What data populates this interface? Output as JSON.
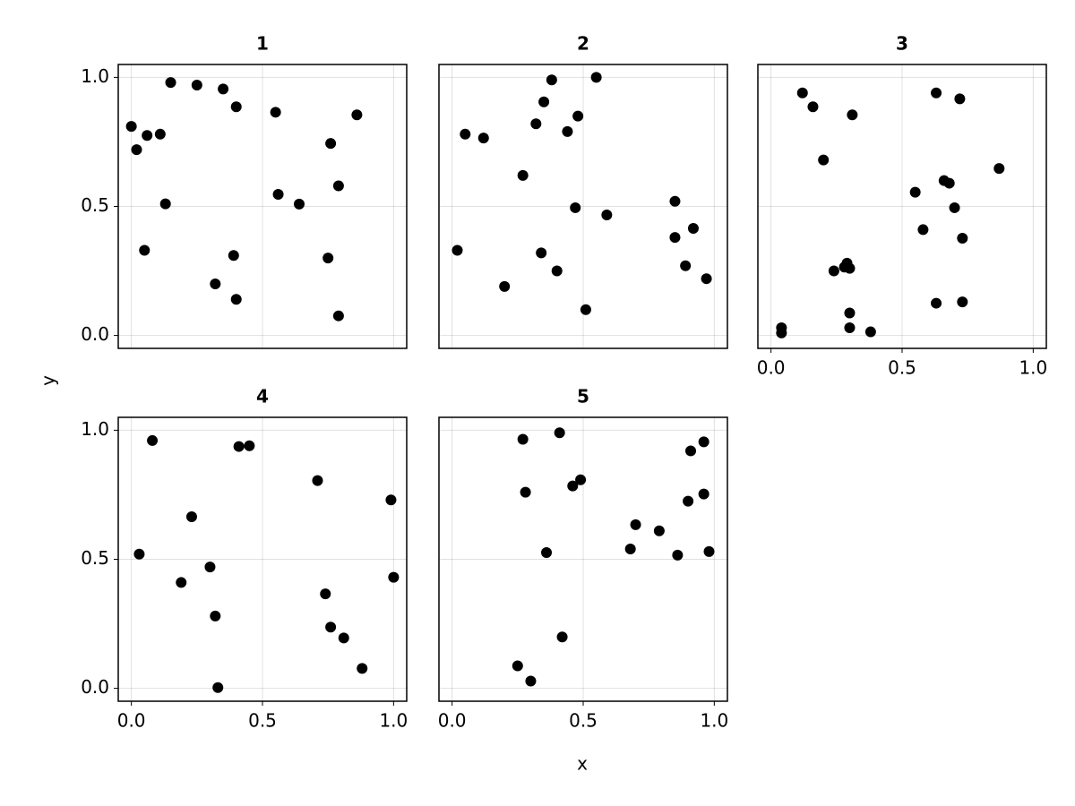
{
  "xlabel": "x",
  "ylabel": "y",
  "chart_data": [
    {
      "type": "scatter",
      "title": "1",
      "xlim": [
        -0.05,
        1.05
      ],
      "ylim": [
        -0.05,
        1.05
      ],
      "grid": true,
      "color": "#000000",
      "xticks": [
        0,
        0.5,
        1
      ],
      "yticks": [
        {
          "value": 0,
          "label": "0.0"
        },
        {
          "value": 0.5,
          "label": "0.5"
        },
        {
          "value": 1,
          "label": "1.0"
        }
      ],
      "x": [
        0.0,
        0.02,
        0.06,
        0.11,
        0.15,
        0.25,
        0.35,
        0.4,
        0.13,
        0.05,
        0.32,
        0.39,
        0.4,
        0.55,
        0.56,
        0.64,
        0.76,
        0.86,
        0.79,
        0.75,
        0.79
      ],
      "y": [
        0.81,
        0.72,
        0.775,
        0.78,
        0.98,
        0.97,
        0.955,
        0.886,
        0.51,
        0.33,
        0.2,
        0.31,
        0.14,
        0.865,
        0.547,
        0.509,
        0.744,
        0.855,
        0.58,
        0.3,
        0.076
      ]
    },
    {
      "type": "scatter",
      "title": "2",
      "xlim": [
        -0.05,
        1.05
      ],
      "ylim": [
        -0.05,
        1.05
      ],
      "grid": true,
      "color": "#000000",
      "xticks": [
        0,
        0.5,
        1
      ],
      "yticks": [
        0,
        0.5,
        1
      ],
      "x": [
        0.02,
        0.05,
        0.12,
        0.2,
        0.27,
        0.32,
        0.35,
        0.38,
        0.34,
        0.4,
        0.44,
        0.48,
        0.47,
        0.51,
        0.55,
        0.59,
        0.85,
        0.85,
        0.92,
        0.89,
        0.97
      ],
      "y": [
        0.33,
        0.78,
        0.765,
        0.19,
        0.62,
        0.82,
        0.905,
        0.99,
        0.32,
        0.25,
        0.79,
        0.85,
        0.495,
        0.1,
        1.0,
        0.467,
        0.52,
        0.38,
        0.415,
        0.27,
        0.22
      ]
    },
    {
      "type": "scatter",
      "title": "3",
      "xlim": [
        -0.05,
        1.05
      ],
      "ylim": [
        -0.05,
        1.05
      ],
      "grid": true,
      "color": "#000000",
      "xticks": [
        {
          "value": 0,
          "label": "0.0"
        },
        {
          "value": 0.5,
          "label": "0.5"
        },
        {
          "value": 1,
          "label": "1.0"
        }
      ],
      "yticks": [
        0,
        0.5,
        1
      ],
      "x": [
        0.04,
        0.04,
        0.12,
        0.16,
        0.2,
        0.31,
        0.24,
        0.28,
        0.29,
        0.3,
        0.3,
        0.3,
        0.38,
        0.55,
        0.58,
        0.63,
        0.63,
        0.66,
        0.68,
        0.7,
        0.72,
        0.73,
        0.73,
        0.87
      ],
      "y": [
        0.03,
        0.01,
        0.94,
        0.886,
        0.68,
        0.855,
        0.25,
        0.265,
        0.28,
        0.26,
        0.087,
        0.03,
        0.014,
        0.555,
        0.41,
        0.94,
        0.125,
        0.6,
        0.59,
        0.495,
        0.917,
        0.377,
        0.13,
        0.647
      ]
    },
    {
      "type": "scatter",
      "title": "4",
      "xlim": [
        -0.05,
        1.05
      ],
      "ylim": [
        -0.05,
        1.05
      ],
      "grid": true,
      "color": "#000000",
      "xticks": [
        {
          "value": 0,
          "label": "0.0"
        },
        {
          "value": 0.5,
          "label": "0.5"
        },
        {
          "value": 1,
          "label": "1.0"
        }
      ],
      "yticks": [
        {
          "value": 0,
          "label": "0.0"
        },
        {
          "value": 0.5,
          "label": "0.5"
        },
        {
          "value": 1,
          "label": "1.0"
        }
      ],
      "x": [
        0.03,
        0.08,
        0.19,
        0.23,
        0.3,
        0.32,
        0.33,
        0.41,
        0.45,
        0.71,
        0.74,
        0.76,
        0.81,
        0.88,
        0.99,
        1.0
      ],
      "y": [
        0.52,
        0.96,
        0.41,
        0.665,
        0.47,
        0.28,
        0.003,
        0.937,
        0.94,
        0.805,
        0.366,
        0.237,
        0.195,
        0.077,
        0.73,
        0.43
      ]
    },
    {
      "type": "scatter",
      "title": "5",
      "xlim": [
        -0.05,
        1.05
      ],
      "ylim": [
        -0.05,
        1.05
      ],
      "grid": true,
      "color": "#000000",
      "xticks": [
        {
          "value": 0,
          "label": "0.0"
        },
        {
          "value": 0.5,
          "label": "0.5"
        },
        {
          "value": 1,
          "label": "1.0"
        }
      ],
      "yticks": [
        0,
        0.5,
        1
      ],
      "x": [
        0.25,
        0.27,
        0.28,
        0.3,
        0.36,
        0.41,
        0.42,
        0.46,
        0.49,
        0.68,
        0.7,
        0.79,
        0.86,
        0.9,
        0.91,
        0.96,
        0.96,
        0.98
      ],
      "y": [
        0.087,
        0.965,
        0.76,
        0.028,
        0.526,
        0.99,
        0.199,
        0.784,
        0.808,
        0.54,
        0.634,
        0.61,
        0.516,
        0.725,
        0.92,
        0.753,
        0.955,
        0.53
      ]
    }
  ]
}
